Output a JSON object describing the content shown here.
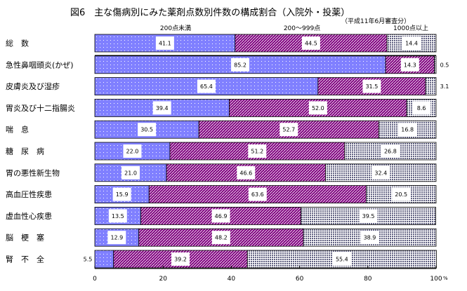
{
  "chart_data": {
    "type": "bar",
    "orientation": "horizontal",
    "stacked": true,
    "title": "図6　主な傷病別にみた薬剤点数別件数の構成割合（入院外・投薬）",
    "subtitle": "（平成11年6月審査分）",
    "xunit": "%",
    "xlim": [
      0,
      100
    ],
    "xticks": [
      0,
      20,
      40,
      60,
      80,
      100
    ],
    "grid": false,
    "categories": [
      "総　数",
      "急性鼻咽頭炎(かぜ)",
      "皮膚炎及び湿疹",
      "胃炎及び十二指腸炎",
      "喘　息",
      "糖　尿　病",
      "胃の悪性新生物",
      "高血圧性疾患",
      "虚血性心疾患",
      "脳　梗　塞",
      "腎　不　全"
    ],
    "series": [
      {
        "name": "200点未満",
        "color": "#8080ff",
        "pattern": "dots",
        "values": [
          41.1,
          85.2,
          65.4,
          39.4,
          30.5,
          22.0,
          21.0,
          15.9,
          13.5,
          12.9,
          5.5
        ]
      },
      {
        "name": "200～999点",
        "color": "#800080",
        "pattern": "diagonal-stripes",
        "values": [
          44.5,
          14.3,
          31.5,
          52.0,
          52.7,
          51.2,
          46.6,
          63.6,
          46.9,
          48.2,
          39.2
        ]
      },
      {
        "name": "1000点以上",
        "color": "#606080",
        "pattern": "grid",
        "values": [
          14.4,
          0.5,
          3.1,
          8.6,
          16.8,
          26.8,
          32.4,
          20.5,
          39.5,
          38.9,
          55.4
        ]
      }
    ]
  }
}
